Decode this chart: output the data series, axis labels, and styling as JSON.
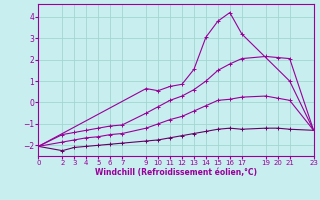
{
  "xlabel": "Windchill (Refroidissement éolien,°C)",
  "bg_color": "#c8eef0",
  "grid_color": "#a0d8d0",
  "line_color": "#990099",
  "x_ticks": [
    0,
    2,
    3,
    4,
    5,
    6,
    7,
    9,
    10,
    11,
    12,
    13,
    14,
    15,
    16,
    17,
    19,
    20,
    21,
    23
  ],
  "xlim": [
    0,
    23
  ],
  "ylim": [
    -2.5,
    4.6
  ],
  "y_ticks": [
    -2,
    -1,
    0,
    1,
    2,
    3,
    4
  ],
  "line1_x": [
    0,
    2,
    3,
    4,
    5,
    6,
    7,
    9,
    10,
    11,
    12,
    13,
    14,
    15,
    16,
    17,
    19,
    20,
    21,
    23
  ],
  "line1_y": [
    -2.05,
    -2.25,
    -2.1,
    -2.05,
    -2.0,
    -1.95,
    -1.9,
    -1.8,
    -1.75,
    -1.65,
    -1.55,
    -1.45,
    -1.35,
    -1.25,
    -1.2,
    -1.25,
    -1.2,
    -1.2,
    -1.25,
    -1.3
  ],
  "line2_x": [
    0,
    2,
    3,
    4,
    5,
    6,
    7,
    9,
    10,
    11,
    12,
    13,
    14,
    15,
    16,
    17,
    19,
    20,
    21,
    23
  ],
  "line2_y": [
    -2.05,
    -1.85,
    -1.75,
    -1.65,
    -1.6,
    -1.5,
    -1.45,
    -1.2,
    -1.0,
    -0.8,
    -0.65,
    -0.4,
    -0.15,
    0.1,
    0.15,
    0.25,
    0.3,
    0.2,
    0.1,
    -1.3
  ],
  "line3_x": [
    0,
    2,
    3,
    4,
    5,
    6,
    7,
    9,
    10,
    11,
    12,
    13,
    14,
    15,
    16,
    17,
    19,
    20,
    21,
    23
  ],
  "line3_y": [
    -2.05,
    -1.5,
    -1.4,
    -1.3,
    -1.2,
    -1.1,
    -1.05,
    -0.5,
    -0.2,
    0.1,
    0.3,
    0.6,
    1.0,
    1.5,
    1.8,
    2.05,
    2.15,
    2.1,
    2.05,
    -1.3
  ],
  "line4_x": [
    0,
    9,
    10,
    11,
    12,
    13,
    14,
    15,
    16,
    17,
    21,
    23
  ],
  "line4_y": [
    -2.05,
    0.65,
    0.55,
    0.75,
    0.85,
    1.55,
    3.05,
    3.8,
    4.2,
    3.2,
    1.0,
    -1.3
  ],
  "marker": "+"
}
